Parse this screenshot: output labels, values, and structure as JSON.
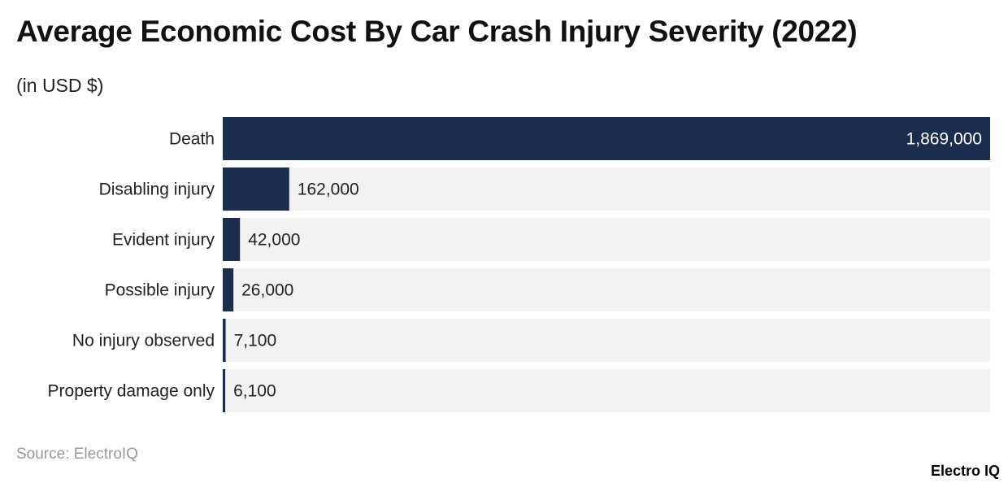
{
  "chart_data": {
    "type": "bar",
    "orientation": "horizontal",
    "title": "Average Economic Cost By Car Crash Injury Severity (2022)",
    "subtitle": "(in USD $)",
    "categories": [
      "Death",
      "Disabling injury",
      "Evident injury",
      "Possible injury",
      "No injury observed",
      "Property damage only"
    ],
    "values": [
      1869000,
      162000,
      42000,
      26000,
      7100,
      6100
    ],
    "value_labels": [
      "1,869,000",
      "162,000",
      "42,000",
      "26,000",
      "7,100",
      "6,100"
    ],
    "xlim": [
      0,
      1869000
    ],
    "grid": false,
    "colors": {
      "bar": "#1a2d4c",
      "track": "#f2f2f2"
    }
  },
  "footer": {
    "source": "Source: ElectroIQ",
    "logo": "Electro IQ"
  }
}
